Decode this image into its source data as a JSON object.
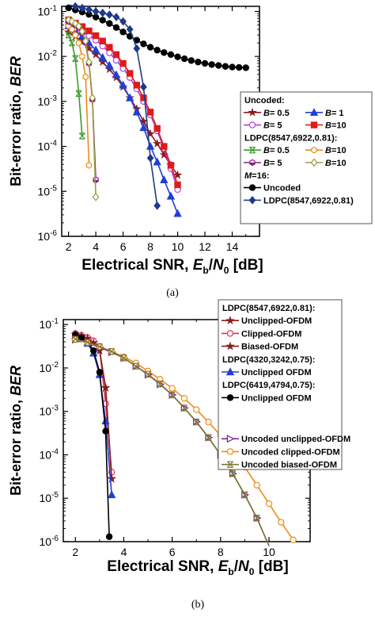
{
  "chart_data": [
    {
      "type": "line",
      "caption": "(a)",
      "xlabel": "Electrical SNR, E_b/N_0 [dB]",
      "xlabel_parts": {
        "main": "Electrical SNR, ",
        "E": "E",
        "b": "b",
        "slash": "/",
        "N": "N",
        "zero": "0",
        "unit": " [dB]"
      },
      "ylabel": "Bit-error ratio, BER",
      "ylabel_parts": {
        "main": "Bit-error ratio, ",
        "italic": "BER"
      },
      "x_scale": "linear",
      "xlim": [
        1.5,
        16
      ],
      "xticks": [
        "2",
        "4",
        "6",
        "8",
        "10",
        "12",
        "14"
      ],
      "y_scale": "log",
      "ylim": [
        1e-06,
        0.13
      ],
      "yticks": [
        {
          "exp": -1,
          "label": "10",
          "sup": "-1"
        },
        {
          "exp": -2,
          "label": "10",
          "sup": "-2"
        },
        {
          "exp": -3,
          "label": "10",
          "sup": "-3"
        },
        {
          "exp": -4,
          "label": "10",
          "sup": "-4"
        },
        {
          "exp": -5,
          "label": "10",
          "sup": "-5"
        },
        {
          "exp": -6,
          "label": "10",
          "sup": "-6"
        }
      ],
      "legend_position": "right",
      "legend_groups": [
        {
          "title": "Uncoded:",
          "entries": [
            [
              0,
              1
            ],
            [
              2,
              3
            ]
          ]
        },
        {
          "title": "LDPC(8547,6922,0.81):",
          "entries": [
            [
              4,
              5
            ],
            [
              6,
              7
            ]
          ]
        },
        {
          "title": "M=16:",
          "title_parts": {
            "m": "M",
            "rest": "=16:"
          },
          "entries": [
            [
              8
            ],
            [
              9
            ]
          ]
        }
      ],
      "series": [
        {
          "name": "B= 0.5",
          "name_parts": {
            "b": "B",
            "rest": "= 0.5"
          },
          "color": "#8b1c1c",
          "marker": "star",
          "fill": true,
          "x": [
            2,
            2.5,
            3,
            3.5,
            4,
            4.5,
            5,
            5.5,
            6,
            6.5,
            7,
            7.5,
            8,
            8.5,
            9,
            9.5,
            10
          ],
          "y": [
            0.035,
            0.028,
            0.021,
            0.015,
            0.011,
            0.0075,
            0.0052,
            0.0034,
            0.0021,
            0.0012,
            0.00068,
            0.00036,
            0.00019,
            0.000115,
            6.5e-05,
            3.8e-05,
            2.3e-05
          ]
        },
        {
          "name": "B= 1",
          "name_parts": {
            "b": "B",
            "rest": "= 1"
          },
          "color": "#1f3fd6",
          "marker": "triangle",
          "fill": true,
          "x": [
            2,
            2.5,
            3,
            3.5,
            4,
            4.5,
            5,
            5.5,
            6,
            6.5,
            7,
            7.5,
            8,
            8.5,
            9,
            9.5,
            10
          ],
          "y": [
            0.048,
            0.037,
            0.028,
            0.02,
            0.014,
            0.0095,
            0.0063,
            0.0039,
            0.0023,
            0.0012,
            0.00058,
            0.00026,
            0.0001,
            4.5e-05,
            1.8e-05,
            7.8e-06,
            3.2e-06
          ]
        },
        {
          "name": "B= 5",
          "name_parts": {
            "b": "B",
            "rest": "= 5"
          },
          "color": "#b13ee0",
          "marker": "circle",
          "fill": false,
          "x": [
            2,
            2.5,
            3,
            3.5,
            4,
            4.5,
            5,
            5.5,
            6,
            6.5,
            7,
            7.5,
            8,
            8.5,
            9,
            9.5,
            10
          ],
          "y": [
            0.05,
            0.043,
            0.036,
            0.029,
            0.023,
            0.017,
            0.012,
            0.0082,
            0.0054,
            0.0034,
            0.0019,
            0.001,
            0.0005,
            0.00022,
            9e-05,
            3.2e-05,
            1.1e-05
          ]
        },
        {
          "name": "B=10",
          "name_parts": {
            "b": "B",
            "rest": "=10"
          },
          "color": "#e01a1a",
          "marker": "square",
          "fill": true,
          "x": [
            2,
            2.5,
            3,
            3.5,
            4,
            4.5,
            5,
            5.5,
            6,
            6.5,
            7,
            7.5,
            8,
            8.5,
            9,
            9.5,
            10
          ],
          "y": [
            0.065,
            0.055,
            0.046,
            0.037,
            0.029,
            0.022,
            0.016,
            0.011,
            0.007,
            0.0042,
            0.0023,
            0.0012,
            0.00058,
            0.00025,
            0.0001,
            3.8e-05,
            1.4e-05
          ]
        },
        {
          "name": "B= 0.5",
          "name_parts": {
            "b": "B",
            "rest": "= 0.5"
          },
          "color": "#3a9a2a",
          "marker": "x",
          "fill": false,
          "x": [
            2,
            2.25,
            2.5,
            2.75,
            3
          ],
          "y": [
            0.03,
            0.02,
            0.009,
            0.0015,
            0.00017
          ]
        },
        {
          "name": "B=10",
          "name_parts": {
            "b": "B",
            "rest": "=10"
          },
          "color": "#f08b1a",
          "marker": "hex",
          "fill": false,
          "x": [
            2,
            2.25,
            2.5,
            2.75,
            3,
            3.25,
            3.5
          ],
          "y": [
            0.048,
            0.04,
            0.03,
            0.02,
            0.01,
            0.0035,
            3.8e-05
          ]
        },
        {
          "name": "B= 5",
          "name_parts": {
            "b": "B",
            "rest": "= 5"
          },
          "color": "#8a1a8a",
          "marker": "halfhex",
          "fill": false,
          "x": [
            2,
            2.25,
            2.5,
            2.75,
            3,
            3.25,
            3.5,
            3.75,
            4
          ],
          "y": [
            0.06,
            0.056,
            0.05,
            0.043,
            0.033,
            0.02,
            0.007,
            0.0011,
            1.8e-05
          ]
        },
        {
          "name": "B=10",
          "name_parts": {
            "b": "B",
            "rest": "=10"
          },
          "color": "#9a9a40",
          "marker": "diamond",
          "fill": false,
          "x": [
            2,
            2.25,
            2.5,
            2.75,
            3,
            3.25,
            3.5,
            3.75,
            4
          ],
          "y": [
            0.065,
            0.06,
            0.054,
            0.047,
            0.036,
            0.022,
            0.0075,
            0.0012,
            7.5e-06
          ]
        },
        {
          "name": "Uncoded",
          "color": "#000000",
          "marker": "circle",
          "fill": true,
          "x": [
            2,
            2.5,
            3,
            3.5,
            4,
            4.5,
            5,
            5.5,
            6,
            6.5,
            7,
            7.5,
            8,
            8.5,
            9,
            9.5,
            10,
            10.5,
            11,
            11.5,
            12,
            12.5,
            13,
            13.5,
            14,
            14.5,
            15
          ],
          "y": [
            0.12,
            0.108,
            0.097,
            0.086,
            0.075,
            0.064,
            0.054,
            0.044,
            0.035,
            0.028,
            0.023,
            0.019,
            0.016,
            0.0138,
            0.0122,
            0.011,
            0.0098,
            0.0089,
            0.0081,
            0.0075,
            0.007,
            0.0066,
            0.0063,
            0.006,
            0.0058,
            0.0057,
            0.0056
          ]
        },
        {
          "name": "LDPC(8547,6922,0.81)",
          "color": "#1f3a8a",
          "marker": "diamond",
          "fill": true,
          "x": [
            2,
            2.5,
            3,
            3.5,
            4,
            4.5,
            5,
            5.5,
            6,
            6.5,
            7,
            7.5,
            8,
            8.5
          ],
          "y": [
            0.14,
            0.13,
            0.12,
            0.11,
            0.1,
            0.093,
            0.085,
            0.075,
            0.06,
            0.04,
            0.015,
            0.0021,
            5.5e-05,
            4.8e-06
          ]
        }
      ]
    },
    {
      "type": "line",
      "caption": "(b)",
      "xlabel": "Electrical SNR, E_b/N_0 [dB]",
      "xlabel_parts": {
        "main": "Electrical SNR, ",
        "E": "E",
        "b": "b",
        "slash": "/",
        "N": "N",
        "zero": "0",
        "unit": " [dB]"
      },
      "ylabel": "Bit-error ratio, BER",
      "ylabel_parts": {
        "main": "Bit-error ratio, ",
        "italic": "BER"
      },
      "x_scale": "linear",
      "xlim": [
        1.5,
        11.7
      ],
      "xticks": [
        "2",
        "4",
        "6",
        "8",
        "10"
      ],
      "y_scale": "log",
      "ylim": [
        1e-06,
        0.13
      ],
      "yticks": [
        {
          "exp": -1,
          "label": "10",
          "sup": "-1"
        },
        {
          "exp": -2,
          "label": "10",
          "sup": "-2"
        },
        {
          "exp": -3,
          "label": "10",
          "sup": "-3"
        },
        {
          "exp": -4,
          "label": "10",
          "sup": "-4"
        },
        {
          "exp": -5,
          "label": "10",
          "sup": "-5"
        },
        {
          "exp": -6,
          "label": "10",
          "sup": "-6"
        }
      ],
      "legend_position": "top-right",
      "legend_groups": [
        {
          "title": "LDPC(8547,6922,0.81):",
          "entries": [
            [
              0
            ],
            [
              1
            ],
            [
              2
            ]
          ]
        },
        {
          "title": "LDPC(4320,3242,0.75):",
          "entries": [
            [
              3
            ]
          ]
        },
        {
          "title": "LDPC(6419,4794,0.75):",
          "entries": [
            [
              4
            ]
          ]
        },
        {
          "title": "",
          "entries": [
            [
              5
            ],
            [
              6
            ],
            [
              7
            ]
          ]
        }
      ],
      "series": [
        {
          "name": "Unclipped-OFDM",
          "color": "#8b1c1c",
          "marker": "star",
          "fill": true,
          "x": [
            2,
            2.25,
            2.5,
            2.75,
            3,
            3.25,
            3.5
          ],
          "y": [
            0.06,
            0.055,
            0.048,
            0.038,
            0.025,
            0.0035,
            2.8e-05
          ]
        },
        {
          "name": "Clipped-OFDM",
          "color": "#e0305a",
          "marker": "circle",
          "fill": false,
          "x": [
            2,
            2.25,
            2.5,
            2.75,
            3,
            3.25,
            3.5
          ],
          "y": [
            0.062,
            0.056,
            0.05,
            0.042,
            0.028,
            0.0015,
            4e-05
          ]
        },
        {
          "name": "Biased-OFDM",
          "color": "#8b1c1c",
          "marker": "star",
          "fill": true,
          "x": [
            2,
            2.25,
            2.5,
            2.75,
            3,
            3.25,
            3.5
          ],
          "y": [
            0.06,
            0.055,
            0.048,
            0.038,
            0.025,
            0.0035,
            2.8e-05
          ]
        },
        {
          "name": "Unclipped OFDM",
          "color": "#1f3fd6",
          "marker": "triangle",
          "fill": true,
          "x": [
            2,
            2.25,
            2.5,
            2.75,
            3,
            3.25,
            3.5
          ],
          "y": [
            0.055,
            0.047,
            0.037,
            0.022,
            0.007,
            0.0006,
            1.2e-05
          ]
        },
        {
          "name": "Unclipped OFDM",
          "color": "#000000",
          "marker": "circle",
          "fill": true,
          "x": [
            2,
            2.25,
            2.5,
            2.75,
            3,
            3.25,
            3.4
          ],
          "y": [
            0.058,
            0.05,
            0.04,
            0.025,
            0.008,
            0.00035,
            1.3e-06
          ]
        },
        {
          "name": "Uncoded unclipped-OFDM",
          "color": "#7a1a8a",
          "marker": "rtriangle",
          "fill": false,
          "x": [
            2,
            2.5,
            3,
            3.5,
            4,
            4.5,
            5,
            5.5,
            6,
            6.5,
            7,
            7.5,
            8,
            8.5,
            9,
            9.5,
            10
          ],
          "y": [
            0.045,
            0.038,
            0.03,
            0.023,
            0.017,
            0.011,
            0.007,
            0.0042,
            0.0024,
            0.0012,
            0.00058,
            0.00025,
            0.0001,
            3.7e-05,
            1.2e-05,
            3.5e-06,
            8e-07
          ]
        },
        {
          "name": "Uncoded clipped-OFDM",
          "color": "#f08b1a",
          "marker": "circle",
          "fill": false,
          "x": [
            2,
            2.5,
            3,
            3.5,
            4,
            4.5,
            5,
            5.5,
            6,
            6.5,
            7,
            7.5,
            8,
            8.5,
            9,
            9.5,
            10,
            10.5,
            11
          ],
          "y": [
            0.045,
            0.038,
            0.031,
            0.024,
            0.018,
            0.013,
            0.0085,
            0.0055,
            0.0034,
            0.002,
            0.0011,
            0.00057,
            0.00028,
            0.000125,
            5.2e-05,
            2e-05,
            7.5e-06,
            2.8e-06,
            1.1e-06
          ]
        },
        {
          "name": "Uncoded biased-OFDM",
          "color": "#7a7a30",
          "marker": "x",
          "fill": false,
          "x": [
            2,
            2.5,
            3,
            3.5,
            4,
            4.5,
            5,
            5.5,
            6,
            6.5,
            7,
            7.5,
            8,
            8.5,
            9,
            9.5,
            10
          ],
          "y": [
            0.046,
            0.039,
            0.031,
            0.024,
            0.017,
            0.011,
            0.0072,
            0.0043,
            0.0024,
            0.0012,
            0.00057,
            0.00025,
            0.0001,
            3.7e-05,
            1.2e-05,
            3.5e-06,
            8e-07
          ]
        }
      ]
    }
  ]
}
